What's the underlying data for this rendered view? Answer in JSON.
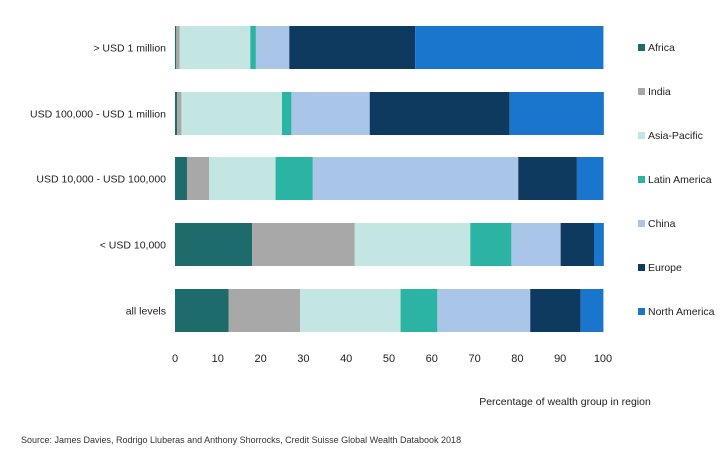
{
  "chart_data": {
    "type": "bar",
    "orientation": "horizontal",
    "stacked": true,
    "categories": [
      "> USD 1 million",
      "USD 100,000 - USD 1 million",
      "USD 10,000 - USD 100,000",
      "< USD 10,000",
      "all levels"
    ],
    "series": [
      {
        "name": "Africa",
        "color": "#1e6b6b",
        "values": [
          0.3,
          0.5,
          2.8,
          18.0,
          12.5
        ]
      },
      {
        "name": "India",
        "color": "#a8a8a8",
        "values": [
          0.8,
          1.0,
          5.2,
          24.0,
          16.7
        ]
      },
      {
        "name": "Asia-Pacific",
        "color": "#c4e6e2",
        "values": [
          16.5,
          23.5,
          15.5,
          27.0,
          23.5
        ]
      },
      {
        "name": "Latin America",
        "color": "#2bb3a3",
        "values": [
          1.3,
          2.2,
          8.7,
          9.6,
          8.6
        ]
      },
      {
        "name": "China",
        "color": "#a9c6e9",
        "values": [
          7.8,
          18.3,
          48.0,
          11.5,
          21.7
        ]
      },
      {
        "name": "Europe",
        "color": "#0f3a60",
        "values": [
          29.4,
          32.7,
          13.7,
          7.8,
          11.8
        ]
      },
      {
        "name": "North America",
        "color": "#1a76cc",
        "values": [
          44.0,
          22.0,
          6.2,
          2.3,
          5.3
        ]
      }
    ],
    "x_ticks": [
      "0",
      "10",
      "20",
      "30",
      "40",
      "50",
      "60",
      "70",
      "80",
      "90",
      "100"
    ],
    "xlim": [
      0,
      100
    ],
    "xlabel": "Percentage of wealth group in region",
    "ylabel": "",
    "grid": false,
    "legend_position": "right"
  },
  "source": "Source: James Davies, Rodrigo Lluberas and Anthony Shorrocks, Credit Suisse Global Wealth Databook 2018"
}
